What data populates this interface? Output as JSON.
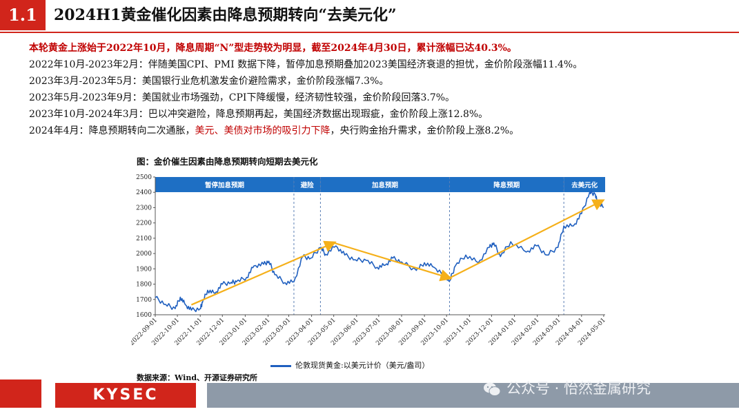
{
  "header": {
    "section_number": "1.1",
    "title": "2024H1黄金催化因素由降息预期转向“去美元化”"
  },
  "bullets": {
    "highlight": "本轮黄金上涨始于2022年10月，降息周期“N”型走势较为明显，截至2024年4月30日，累计涨幅已达40.3%。",
    "line1": "2022年10月-2023年2月：伴随美国CPI、PMI 数据下降，暂停加息预期叠加2023美国经济衰退的担忧，金价阶段涨幅11.4%。",
    "line2": "2023年3月-2023年5月：美国银行业危机激发金价避险需求，金价阶段涨幅7.3%。",
    "line3": "2023年5月-2023年9月：美国就业市场强劲，CPI下降缓慢，经济韧性较强，金价阶段回落3.7%。",
    "line4": "2023年10月-2024年3月：巴以冲突避险，降息预期再起，美国经济数据出现瑕疵，金价阶段上涨12.8%。",
    "line5_pre": "2024年4月：降息预期转向二次通胀，",
    "line5_red": "美元、美债对市场的吸引力下降",
    "line5_post": "，央行购金抬升需求，金价阶段上涨8.2%。"
  },
  "chart_data": {
    "type": "line",
    "title": "图：金价催生因素由降息预期转向短期去美元化",
    "source": "数据来源：Wind、开源证券研究所",
    "x_tick_labels": [
      "2022-09-01",
      "2022-10-01",
      "2022-11-01",
      "2022-12-01",
      "2023-01-01",
      "2023-02-01",
      "2023-03-01",
      "2023-04-01",
      "2023-05-01",
      "2023-06-01",
      "2023-07-01",
      "2023-08-01",
      "2023-09-01",
      "2023-10-01",
      "2023-11-01",
      "2023-12-01",
      "2024-01-01",
      "2024-02-01",
      "2024-03-01",
      "2024-04-01",
      "2024-05-01"
    ],
    "y_ticks": [
      1600,
      1700,
      1800,
      1900,
      2000,
      2100,
      2200,
      2300,
      2400,
      2500
    ],
    "ylim": [
      1600,
      2500
    ],
    "xlim": [
      "2022-09-01",
      "2024-05-03"
    ],
    "grid": false,
    "legend_position": "bottom",
    "series": [
      {
        "name": "伦敦现货黄金:以美元计价（美元/盎司）",
        "color": "#1f5fbf",
        "points": [
          [
            "2022-09-01",
            1712
          ],
          [
            "2022-09-15",
            1668
          ],
          [
            "2022-09-28",
            1640
          ],
          [
            "2022-10-05",
            1715
          ],
          [
            "2022-10-12",
            1665
          ],
          [
            "2022-10-20",
            1630
          ],
          [
            "2022-11-01",
            1640
          ],
          [
            "2022-11-04",
            1680
          ],
          [
            "2022-11-11",
            1760
          ],
          [
            "2022-11-21",
            1740
          ],
          [
            "2022-12-01",
            1800
          ],
          [
            "2022-12-13",
            1812
          ],
          [
            "2022-12-20",
            1815
          ],
          [
            "2023-01-03",
            1845
          ],
          [
            "2023-01-13",
            1920
          ],
          [
            "2023-01-26",
            1930
          ],
          [
            "2023-02-02",
            1950
          ],
          [
            "2023-02-10",
            1862
          ],
          [
            "2023-02-24",
            1810
          ],
          [
            "2023-03-08",
            1815
          ],
          [
            "2023-03-20",
            1980
          ],
          [
            "2023-03-31",
            1970
          ],
          [
            "2023-04-13",
            2040
          ],
          [
            "2023-04-20",
            1995
          ],
          [
            "2023-05-04",
            2050
          ],
          [
            "2023-05-16",
            1990
          ],
          [
            "2023-05-30",
            1960
          ],
          [
            "2023-06-14",
            1955
          ],
          [
            "2023-06-29",
            1910
          ],
          [
            "2023-07-10",
            1925
          ],
          [
            "2023-07-20",
            1970
          ],
          [
            "2023-08-01",
            1945
          ],
          [
            "2023-08-21",
            1890
          ],
          [
            "2023-09-01",
            1940
          ],
          [
            "2023-09-14",
            1910
          ],
          [
            "2023-09-29",
            1860
          ],
          [
            "2023-10-05",
            1820
          ],
          [
            "2023-10-13",
            1920
          ],
          [
            "2023-10-27",
            1990
          ],
          [
            "2023-11-13",
            1940
          ],
          [
            "2023-11-28",
            2040
          ],
          [
            "2023-12-04",
            2070
          ],
          [
            "2023-12-13",
            1980
          ],
          [
            "2023-12-27",
            2077
          ],
          [
            "2024-01-17",
            2010
          ],
          [
            "2024-01-31",
            2050
          ],
          [
            "2024-02-14",
            1990
          ],
          [
            "2024-02-29",
            2040
          ],
          [
            "2024-03-08",
            2180
          ],
          [
            "2024-03-21",
            2180
          ],
          [
            "2024-04-01",
            2260
          ],
          [
            "2024-04-12",
            2400
          ],
          [
            "2024-04-19",
            2390
          ],
          [
            "2024-04-23",
            2330
          ],
          [
            "2024-05-01",
            2300
          ]
        ]
      }
    ],
    "annotations": {
      "phases": [
        {
          "label": "暂停加息预期",
          "start": "2022-09-01",
          "end": "2023-03-08"
        },
        {
          "label": "避险",
          "start": "2023-03-08",
          "end": "2023-04-13"
        },
        {
          "label": "加息预期",
          "start": "2023-04-13",
          "end": "2023-10-05"
        },
        {
          "label": "降息预期",
          "start": "2023-10-05",
          "end": "2024-03-08"
        },
        {
          "label": "去美元化",
          "start": "2024-03-08",
          "end": "2024-05-03"
        }
      ],
      "dividers": [
        "2023-03-08",
        "2023-04-13",
        "2023-10-05",
        "2024-03-08"
      ],
      "trend_arrows": [
        {
          "from": [
            "2022-10-20",
            1665
          ],
          "to": [
            "2023-05-01",
            2070
          ]
        },
        {
          "from": [
            "2023-05-01",
            2070
          ],
          "to": [
            "2023-10-05",
            1840
          ]
        },
        {
          "from": [
            "2023-10-05",
            1840
          ],
          "to": [
            "2024-04-29",
            2345
          ]
        }
      ],
      "phase_band_color": "#1e6fc4",
      "arrow_color": "#f5b01a"
    }
  },
  "footer": {
    "logo": "KYSEC",
    "watermark": "公众号 · 怡然金属研究"
  },
  "colors": {
    "accent_red": "#d1251b",
    "footer_grey": "#8e9aa8"
  }
}
